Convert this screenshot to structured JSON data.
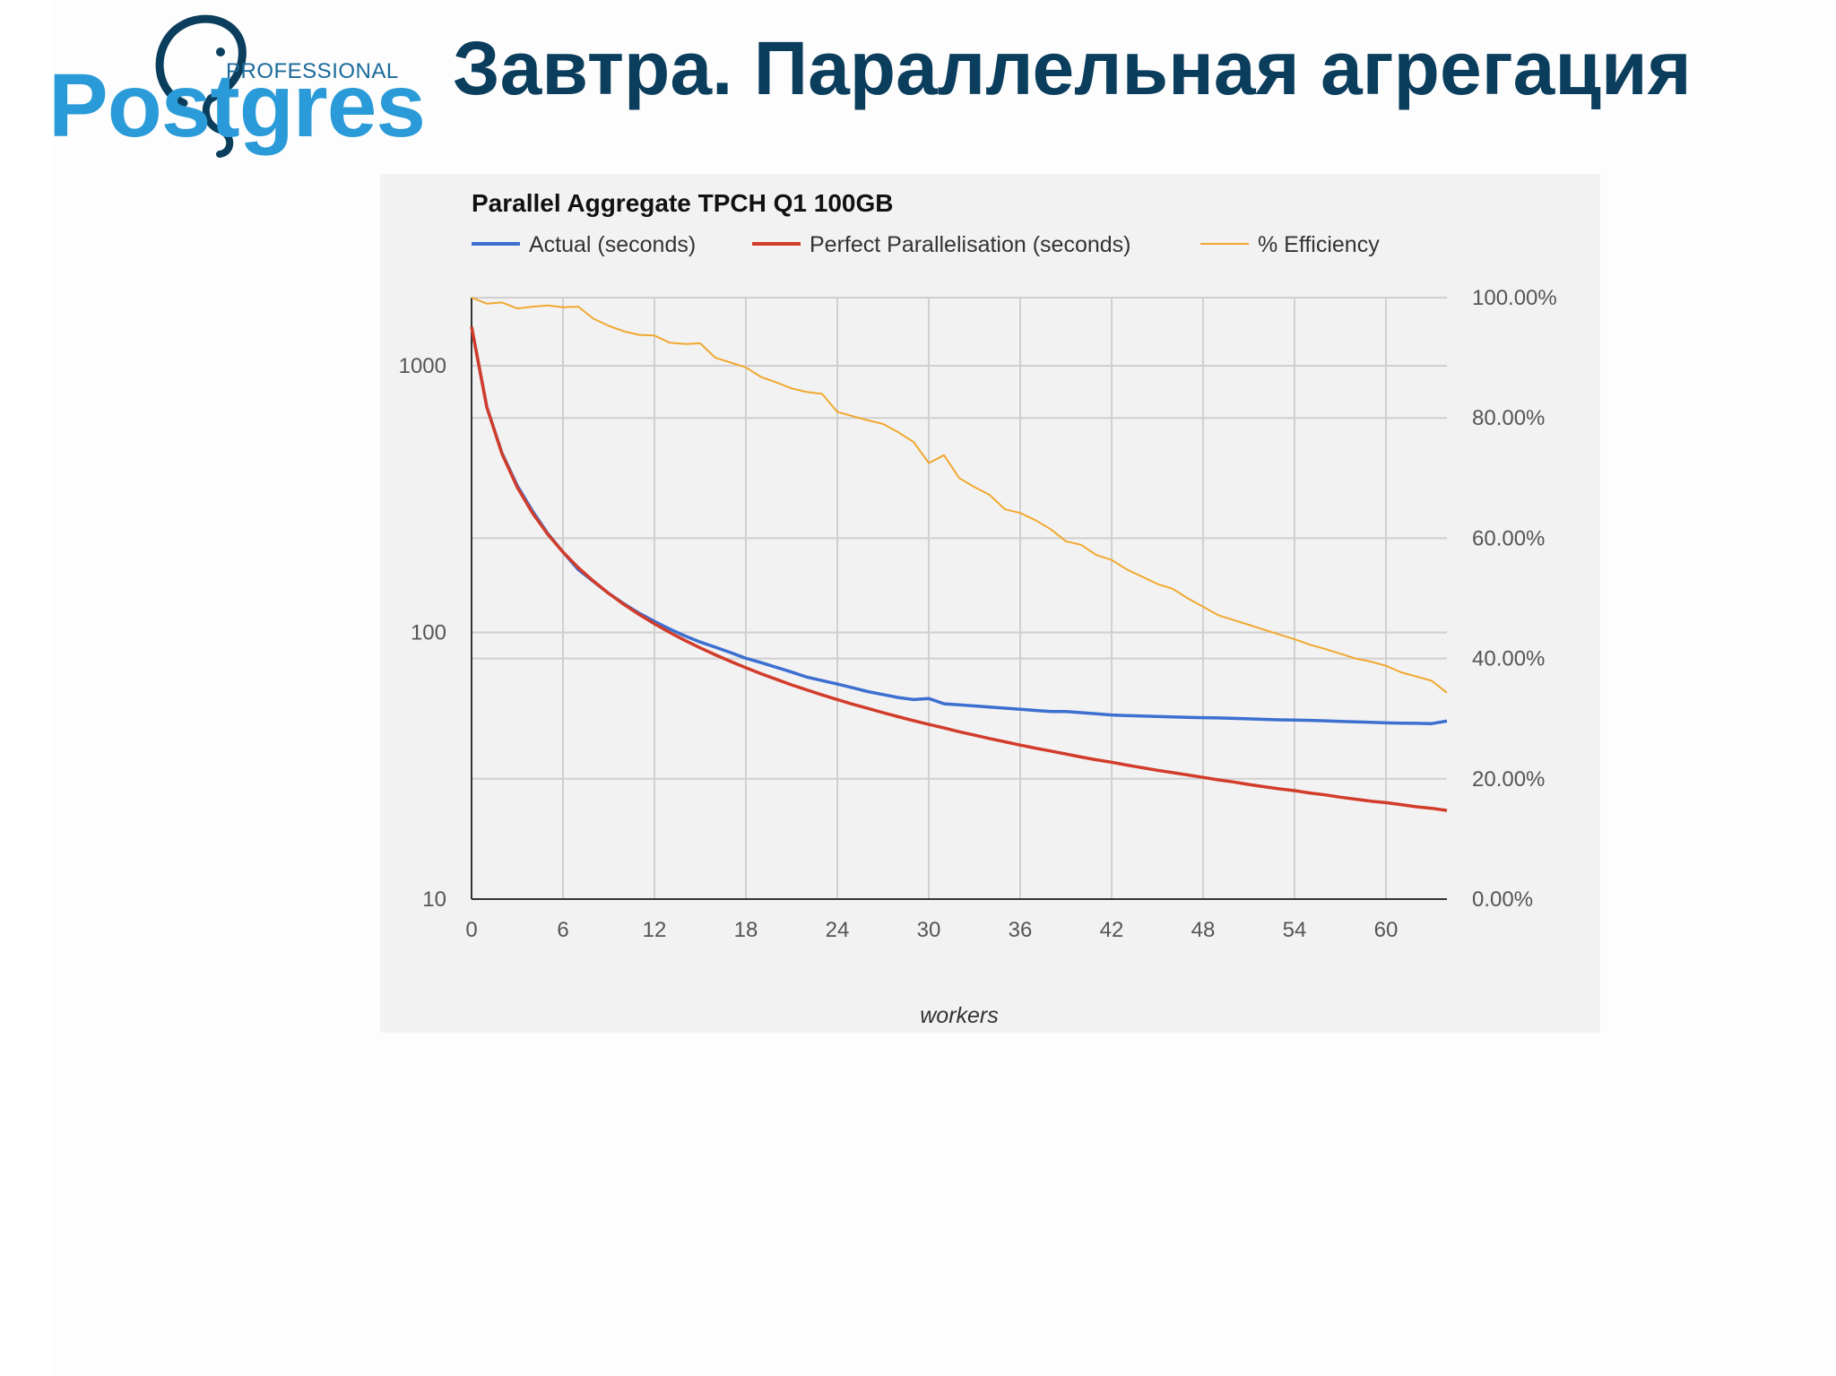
{
  "slide": {
    "title": "Завтра. Параллельная агрегация",
    "logo": {
      "word": "Postgres",
      "tagline": "PROFESSIONAL"
    }
  },
  "colors": {
    "title": "#0b3d5c",
    "logo_blue": "#2a9bd8",
    "panel_bg": "#f2f2f2",
    "actual": "#3c6fd0",
    "perfect": "#d23c2a",
    "efficiency": "#f0a830"
  },
  "chart_data": {
    "type": "line",
    "title": "Parallel Aggregate TPCH Q1 100GB",
    "xlabel": "workers",
    "ylabel_left": "",
    "ylabel_right": "",
    "x_ticks": [
      0,
      6,
      12,
      18,
      24,
      30,
      36,
      42,
      48,
      54,
      60
    ],
    "xlim": [
      0,
      64
    ],
    "y_left": {
      "scale": "log",
      "range": [
        10,
        1800
      ],
      "ticks": [
        10,
        100,
        1000
      ],
      "tick_labels": [
        "10",
        "100",
        "1000"
      ]
    },
    "y_right": {
      "scale": "linear",
      "range": [
        0,
        100
      ],
      "ticks": [
        0,
        20,
        40,
        60,
        80,
        100
      ],
      "tick_labels": [
        "0.00%",
        "20.00%",
        "40.00%",
        "60.00%",
        "80.00%",
        "100.00%"
      ]
    },
    "grid": true,
    "legend_position": "top",
    "x": [
      0,
      1,
      2,
      3,
      4,
      5,
      6,
      7,
      8,
      9,
      10,
      11,
      12,
      13,
      14,
      15,
      16,
      17,
      18,
      19,
      20,
      21,
      22,
      23,
      24,
      25,
      26,
      27,
      28,
      29,
      30,
      31,
      32,
      33,
      34,
      35,
      36,
      37,
      38,
      39,
      40,
      41,
      42,
      43,
      44,
      45,
      46,
      47,
      48,
      49,
      50,
      51,
      52,
      53,
      54,
      55,
      56,
      57,
      58,
      59,
      60,
      61,
      62,
      63,
      64
    ],
    "series": [
      {
        "name": "Actual (seconds)",
        "axis": "left",
        "color": "#3c6fd0",
        "values": [
          1400,
          700,
          470,
          355,
          285,
          235,
          200,
          172,
          155,
          140,
          128,
          118,
          110,
          103,
          97,
          92,
          88,
          84,
          80,
          77,
          74,
          71,
          68,
          66,
          64,
          62,
          60,
          58.5,
          57,
          56,
          56.5,
          54,
          53.5,
          53,
          52.5,
          52,
          51.5,
          51,
          50.5,
          50.5,
          50,
          49.5,
          49,
          48.8,
          48.6,
          48.4,
          48.2,
          48,
          47.9,
          47.8,
          47.6,
          47.4,
          47.2,
          47,
          46.9,
          46.8,
          46.6,
          46.4,
          46.2,
          46,
          45.8,
          45.7,
          45.6,
          45.5,
          46.5
        ]
      },
      {
        "name": "Perfect Parallelisation (seconds)",
        "axis": "left",
        "color": "#d23c2a",
        "values": [
          1400,
          700,
          466.7,
          350,
          280,
          233.3,
          200,
          175,
          155.6,
          140,
          127.3,
          116.7,
          107.7,
          100,
          93.3,
          87.5,
          82.4,
          77.8,
          73.7,
          70,
          66.7,
          63.6,
          60.9,
          58.3,
          56,
          53.8,
          51.9,
          50,
          48.3,
          46.7,
          45.2,
          43.8,
          42.4,
          41.2,
          40,
          38.9,
          37.8,
          36.8,
          35.9,
          35,
          34.1,
          33.3,
          32.6,
          31.8,
          31.1,
          30.4,
          29.8,
          29.2,
          28.6,
          28,
          27.5,
          26.9,
          26.4,
          25.9,
          25.5,
          25,
          24.6,
          24.1,
          23.7,
          23.3,
          23,
          22.6,
          22.2,
          21.9,
          21.5
        ]
      },
      {
        "name": "% Efficiency",
        "axis": "right",
        "color": "#f0a830",
        "values": [
          100,
          99,
          99.2,
          98.2,
          98.5,
          98.7,
          98.4,
          98.5,
          96.5,
          95.3,
          94.4,
          93.8,
          93.7,
          92.5,
          92.3,
          92.4,
          90,
          89.2,
          88.4,
          86.8,
          85.9,
          84.9,
          84.3,
          84,
          81,
          80.3,
          79.6,
          79,
          77.6,
          76,
          72.5,
          73.8,
          70,
          68.5,
          67.2,
          64.8,
          64.2,
          63,
          61.5,
          59.5,
          58.9,
          57.2,
          56.4,
          54.8,
          53.6,
          52.4,
          51.6,
          50,
          48.6,
          47.2,
          46.4,
          45.6,
          44.8,
          44,
          43.2,
          42.3,
          41.6,
          40.8,
          40,
          39.5,
          38.8,
          37.7,
          37,
          36.3,
          34.3
        ]
      }
    ]
  }
}
